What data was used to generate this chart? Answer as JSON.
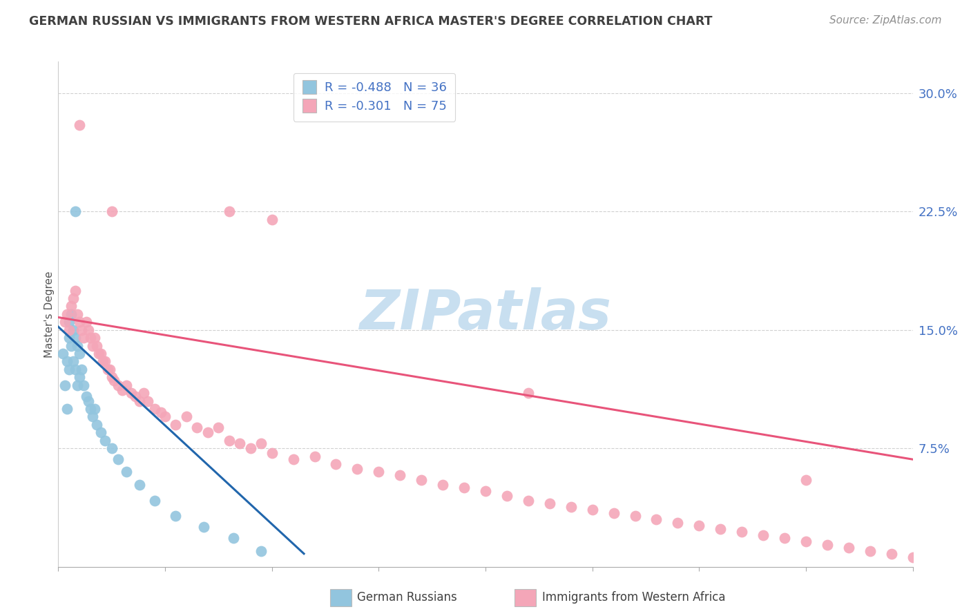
{
  "title": "GERMAN RUSSIAN VS IMMIGRANTS FROM WESTERN AFRICA MASTER'S DEGREE CORRELATION CHART",
  "source": "Source: ZipAtlas.com",
  "ylabel": "Master's Degree",
  "ylabel_right_ticks": [
    "30.0%",
    "22.5%",
    "15.0%",
    "7.5%"
  ],
  "ylabel_right_vals": [
    0.3,
    0.225,
    0.15,
    0.075
  ],
  "xmin": 0.0,
  "xmax": 0.4,
  "ymin": 0.0,
  "ymax": 0.32,
  "color_blue": "#92c5de",
  "color_pink": "#f4a6b8",
  "color_blue_line": "#2166ac",
  "color_pink_line": "#e8547a",
  "color_title": "#404040",
  "color_source": "#909090",
  "color_axis_label": "#4472c4",
  "watermark_color": "#c8dff0",
  "grid_color": "#d0d0d0",
  "blue_x": [
    0.002,
    0.003,
    0.004,
    0.004,
    0.005,
    0.005,
    0.005,
    0.006,
    0.006,
    0.007,
    0.007,
    0.008,
    0.008,
    0.009,
    0.009,
    0.01,
    0.01,
    0.011,
    0.012,
    0.013,
    0.014,
    0.015,
    0.016,
    0.017,
    0.018,
    0.02,
    0.022,
    0.025,
    0.028,
    0.032,
    0.038,
    0.045,
    0.055,
    0.068,
    0.082,
    0.095
  ],
  "blue_y": [
    0.135,
    0.115,
    0.1,
    0.13,
    0.145,
    0.125,
    0.155,
    0.14,
    0.16,
    0.15,
    0.13,
    0.145,
    0.125,
    0.14,
    0.115,
    0.135,
    0.12,
    0.125,
    0.115,
    0.108,
    0.105,
    0.1,
    0.095,
    0.1,
    0.09,
    0.085,
    0.08,
    0.075,
    0.068,
    0.06,
    0.052,
    0.042,
    0.032,
    0.025,
    0.018,
    0.01
  ],
  "blue_outlier_x": [
    0.008
  ],
  "blue_outlier_y": [
    0.225
  ],
  "pink_x": [
    0.003,
    0.004,
    0.005,
    0.006,
    0.007,
    0.008,
    0.009,
    0.01,
    0.011,
    0.012,
    0.013,
    0.014,
    0.015,
    0.016,
    0.017,
    0.018,
    0.019,
    0.02,
    0.021,
    0.022,
    0.023,
    0.024,
    0.025,
    0.026,
    0.028,
    0.03,
    0.032,
    0.034,
    0.036,
    0.038,
    0.04,
    0.042,
    0.045,
    0.048,
    0.05,
    0.055,
    0.06,
    0.065,
    0.07,
    0.075,
    0.08,
    0.085,
    0.09,
    0.095,
    0.1,
    0.11,
    0.12,
    0.13,
    0.14,
    0.15,
    0.16,
    0.17,
    0.18,
    0.19,
    0.2,
    0.21,
    0.22,
    0.23,
    0.24,
    0.25,
    0.26,
    0.27,
    0.28,
    0.29,
    0.3,
    0.31,
    0.32,
    0.33,
    0.34,
    0.35,
    0.36,
    0.37,
    0.38,
    0.39,
    0.4
  ],
  "pink_y": [
    0.155,
    0.16,
    0.15,
    0.165,
    0.17,
    0.175,
    0.16,
    0.155,
    0.15,
    0.145,
    0.155,
    0.15,
    0.145,
    0.14,
    0.145,
    0.14,
    0.135,
    0.135,
    0.13,
    0.13,
    0.125,
    0.125,
    0.12,
    0.118,
    0.115,
    0.112,
    0.115,
    0.11,
    0.108,
    0.105,
    0.11,
    0.105,
    0.1,
    0.098,
    0.095,
    0.09,
    0.095,
    0.088,
    0.085,
    0.088,
    0.08,
    0.078,
    0.075,
    0.078,
    0.072,
    0.068,
    0.07,
    0.065,
    0.062,
    0.06,
    0.058,
    0.055,
    0.052,
    0.05,
    0.048,
    0.045,
    0.042,
    0.04,
    0.038,
    0.036,
    0.034,
    0.032,
    0.03,
    0.028,
    0.026,
    0.024,
    0.022,
    0.02,
    0.018,
    0.016,
    0.014,
    0.012,
    0.01,
    0.008,
    0.006
  ],
  "pink_outlier_x": [
    0.01,
    0.025,
    0.08,
    0.1,
    0.22,
    0.35
  ],
  "pink_outlier_y": [
    0.28,
    0.225,
    0.225,
    0.22,
    0.11,
    0.055
  ],
  "blue_trend_x": [
    0.0,
    0.115
  ],
  "blue_trend_y0": 0.152,
  "blue_trend_slope": -1.25,
  "pink_trend_x": [
    0.0,
    0.4
  ],
  "pink_trend_y0": 0.158,
  "pink_trend_slope": -0.225
}
